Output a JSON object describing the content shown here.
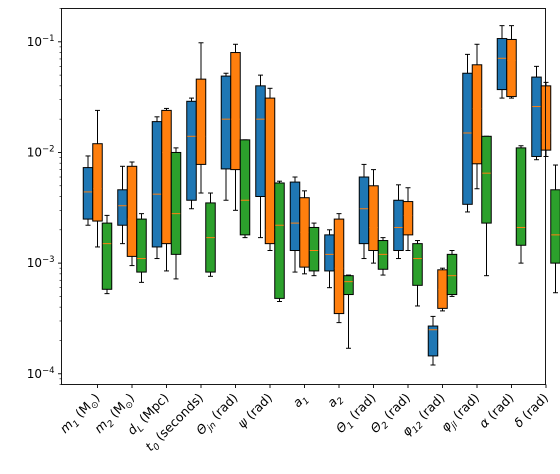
{
  "chart_data": {
    "type": "box",
    "yscale": "log",
    "ylim": [
      8e-05,
      0.2
    ],
    "y_ticks": [
      {
        "value": 0.0001,
        "base": "10",
        "exp": "−4"
      },
      {
        "value": 0.001,
        "base": "10",
        "exp": "−3"
      },
      {
        "value": 0.01,
        "base": "10",
        "exp": "−2"
      },
      {
        "value": 0.1,
        "base": "10",
        "exp": "−1"
      }
    ],
    "grid": false,
    "legend": "none",
    "categories": [
      {
        "main": "m",
        "sub": "1",
        "unit": " (M",
        "unit_sub": "⊙",
        "tail": ")"
      },
      {
        "main": "m",
        "sub": "2",
        "unit": " (M",
        "unit_sub": "⊙",
        "tail": ")"
      },
      {
        "main": "d",
        "sub": "L",
        "unit": " (Mpc)",
        "unit_sub": "",
        "tail": ""
      },
      {
        "main": "t",
        "sub": "0",
        "unit": " (seconds)",
        "unit_sub": "",
        "tail": ""
      },
      {
        "main": "Θ",
        "sub": "jn",
        "unit": " (rad)",
        "unit_sub": "",
        "tail": ""
      },
      {
        "main": "ψ",
        "sub": "",
        "unit": " (rad)",
        "unit_sub": "",
        "tail": ""
      },
      {
        "main": "a",
        "sub": "1",
        "unit": "",
        "unit_sub": "",
        "tail": ""
      },
      {
        "main": "a",
        "sub": "2",
        "unit": "",
        "unit_sub": "",
        "tail": ""
      },
      {
        "main": "Θ",
        "sub": "1",
        "unit": " (rad)",
        "unit_sub": "",
        "tail": ""
      },
      {
        "main": "Θ",
        "sub": "2",
        "unit": " (rad)",
        "unit_sub": "",
        "tail": ""
      },
      {
        "main": "φ",
        "sub": "12",
        "unit": " (rad)",
        "unit_sub": "",
        "tail": ""
      },
      {
        "main": "φ",
        "sub": "jl",
        "unit": " (rad)",
        "unit_sub": "",
        "tail": ""
      },
      {
        "main": "α",
        "sub": "",
        "unit": " (rad)",
        "unit_sub": "",
        "tail": ""
      },
      {
        "main": "δ",
        "sub": "",
        "unit": " (rad)",
        "unit_sub": "",
        "tail": ""
      }
    ],
    "colors": {
      "blue": "#1f77b4",
      "orange": "#ff7f0e",
      "green": "#2ca02c",
      "median_line": "#ff7f0e"
    },
    "series": [
      {
        "color": "#1f77b4",
        "boxes": [
          {
            "whislo": 0.0022,
            "q1": 0.0025,
            "med": 0.0044,
            "q3": 0.0073,
            "whishi": 0.0093
          },
          {
            "whislo": 0.0015,
            "q1": 0.0022,
            "med": 0.0033,
            "q3": 0.0046,
            "whishi": 0.0075
          },
          {
            "whislo": 0.0011,
            "q1": 0.0014,
            "med": 0.0042,
            "q3": 0.019,
            "whishi": 0.021
          },
          {
            "whislo": 0.0031,
            "q1": 0.0037,
            "med": 0.014,
            "q3": 0.029,
            "whishi": 0.031
          },
          {
            "whislo": 0.0037,
            "q1": 0.0071,
            "med": 0.02,
            "q3": 0.049,
            "whishi": 0.052
          },
          {
            "whislo": 0.0017,
            "q1": 0.004,
            "med": 0.02,
            "q3": 0.04,
            "whishi": 0.05
          },
          {
            "whislo": 0.00083,
            "q1": 0.0013,
            "med": 0.0023,
            "q3": 0.0054,
            "whishi": 0.006
          },
          {
            "whislo": 0.0006,
            "q1": 0.00085,
            "med": 0.0012,
            "q3": 0.0018,
            "whishi": 0.002
          },
          {
            "whislo": 0.0011,
            "q1": 0.0015,
            "med": 0.0031,
            "q3": 0.006,
            "whishi": 0.0078
          },
          {
            "whislo": 0.0011,
            "q1": 0.0013,
            "med": 0.0021,
            "q3": 0.0037,
            "whishi": 0.0051
          },
          {
            "whislo": 0.00012,
            "q1": 0.000145,
            "med": 0.00025,
            "q3": 0.00027,
            "whishi": 0.00033
          },
          {
            "whislo": 0.0029,
            "q1": 0.0034,
            "med": 0.015,
            "q3": 0.052,
            "whishi": 0.077
          },
          {
            "whislo": 0.031,
            "q1": 0.037,
            "med": 0.071,
            "q3": 0.107,
            "whishi": 0.14
          },
          {
            "whislo": 0.0086,
            "q1": 0.0092,
            "med": 0.026,
            "q3": 0.048,
            "whishi": 0.06
          }
        ]
      },
      {
        "color": "#ff7f0e",
        "boxes": [
          {
            "whislo": 0.0014,
            "q1": 0.0024,
            "med": 0.0047,
            "q3": 0.012,
            "whishi": 0.024
          },
          {
            "whislo": 0.00095,
            "q1": 0.00115,
            "med": 0.0025,
            "q3": 0.0075,
            "whishi": 0.0082
          },
          {
            "whislo": 0.00085,
            "q1": 0.0015,
            "med": 0.01,
            "q3": 0.024,
            "whishi": 0.025
          },
          {
            "whislo": 0.0043,
            "q1": 0.0078,
            "med": 0.014,
            "q3": 0.046,
            "whishi": 0.098
          },
          {
            "whislo": 0.003,
            "q1": 0.007,
            "med": 0.02,
            "q3": 0.08,
            "whishi": 0.095
          },
          {
            "whislo": 0.0013,
            "q1": 0.0015,
            "med": 0.002,
            "q3": 0.031,
            "whishi": 0.038
          },
          {
            "whislo": 0.0008,
            "q1": 0.00092,
            "med": 0.0019,
            "q3": 0.0039,
            "whishi": 0.0045
          },
          {
            "whislo": 0.00029,
            "q1": 0.00035,
            "med": 0.0009,
            "q3": 0.0025,
            "whishi": 0.0028
          },
          {
            "whislo": 0.001,
            "q1": 0.0013,
            "med": 0.0021,
            "q3": 0.005,
            "whishi": 0.007
          },
          {
            "whislo": 0.0013,
            "q1": 0.0018,
            "med": 0.0027,
            "q3": 0.0036,
            "whishi": 0.0048
          },
          {
            "whislo": 0.00037,
            "q1": 0.00039,
            "med": 0.00058,
            "q3": 0.00087,
            "whishi": 0.0009
          },
          {
            "whislo": 0.0047,
            "q1": 0.0079,
            "med": 0.025,
            "q3": 0.062,
            "whishi": 0.095
          },
          {
            "whislo": 0.031,
            "q1": 0.032,
            "med": 0.068,
            "q3": 0.105,
            "whishi": 0.14
          },
          {
            "whislo": 0.0092,
            "q1": 0.0105,
            "med": 0.015,
            "q3": 0.04,
            "whishi": 0.043
          }
        ]
      },
      {
        "color": "#2ca02c",
        "boxes": [
          {
            "whislo": 0.00053,
            "q1": 0.00058,
            "med": 0.0015,
            "q3": 0.0023,
            "whishi": 0.0027
          },
          {
            "whislo": 0.00067,
            "q1": 0.00083,
            "med": 0.0011,
            "q3": 0.0025,
            "whishi": 0.0028
          },
          {
            "whislo": 0.00072,
            "q1": 0.0012,
            "med": 0.0028,
            "q3": 0.01,
            "whishi": 0.011
          },
          {
            "whislo": 0.00076,
            "q1": 0.00083,
            "med": 0.0017,
            "q3": 0.0035,
            "whishi": 0.0043
          },
          {
            "whislo": 0.0017,
            "q1": 0.0018,
            "med": 0.0037,
            "q3": 0.013,
            "whishi": 0.013
          },
          {
            "whislo": 0.00045,
            "q1": 0.00048,
            "med": 0.0022,
            "q3": 0.0053,
            "whishi": 0.0055
          },
          {
            "whislo": 0.00077,
            "q1": 0.00085,
            "med": 0.0013,
            "q3": 0.0021,
            "whishi": 0.0023
          },
          {
            "whislo": 0.00017,
            "q1": 0.00052,
            "med": 0.00068,
            "q3": 0.00077,
            "whishi": 0.00078
          },
          {
            "whislo": 0.00078,
            "q1": 0.00088,
            "med": 0.0012,
            "q3": 0.0016,
            "whishi": 0.0017
          },
          {
            "whislo": 0.00041,
            "q1": 0.00063,
            "med": 0.0011,
            "q3": 0.0015,
            "whishi": 0.0016
          },
          {
            "whislo": 0.0005,
            "q1": 0.00052,
            "med": 0.00077,
            "q3": 0.0012,
            "whishi": 0.0013
          },
          {
            "whislo": 0.00077,
            "q1": 0.0023,
            "med": 0.0065,
            "q3": 0.014,
            "whishi": 0.014
          },
          {
            "whislo": 0.001,
            "q1": 0.00145,
            "med": 0.0021,
            "q3": 0.011,
            "whishi": 0.0115
          },
          {
            "whislo": 0.00054,
            "q1": 0.001,
            "med": 0.0018,
            "q3": 0.0046,
            "whishi": 0.0077
          }
        ]
      }
    ]
  }
}
